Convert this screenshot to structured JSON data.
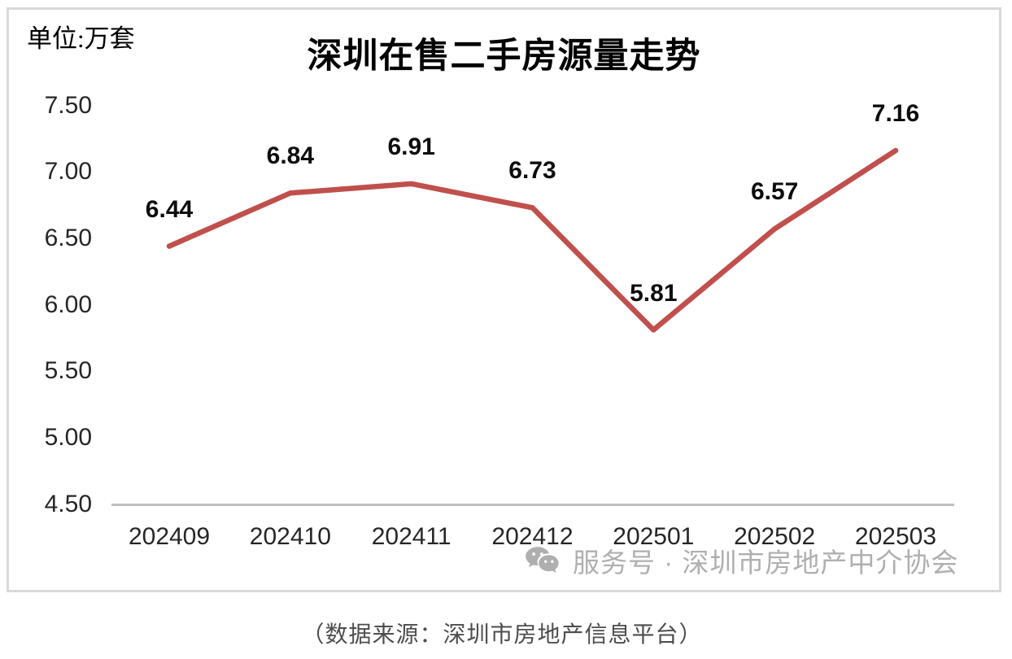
{
  "chart_data": {
    "type": "line",
    "title": "深圳在售二手房源量走势",
    "unit_label": "单位:万套",
    "categories": [
      "202409",
      "202410",
      "202411",
      "202412",
      "202501",
      "202502",
      "202503"
    ],
    "values": [
      6.44,
      6.84,
      6.91,
      6.73,
      5.81,
      6.57,
      7.16
    ],
    "data_labels": [
      "6.44",
      "6.84",
      "6.91",
      "6.73",
      "5.81",
      "6.57",
      "7.16"
    ],
    "ylim": [
      4.5,
      7.5
    ],
    "yticks": [
      7.5,
      7.0,
      6.5,
      6.0,
      5.5,
      5.0,
      4.5
    ],
    "ytick_decimals": 2,
    "xlabel": "",
    "ylabel": "",
    "grid": false,
    "legend_position": "none",
    "line_color": "#C0504D",
    "data_label_color": "#0d0d0d",
    "axis_text_color": "#262626"
  },
  "watermark": {
    "icon": "wechat-icon",
    "text": "服务号 · 深圳市房地产中介协会"
  },
  "caption": "（数据来源：深圳市房地产信息平台）"
}
